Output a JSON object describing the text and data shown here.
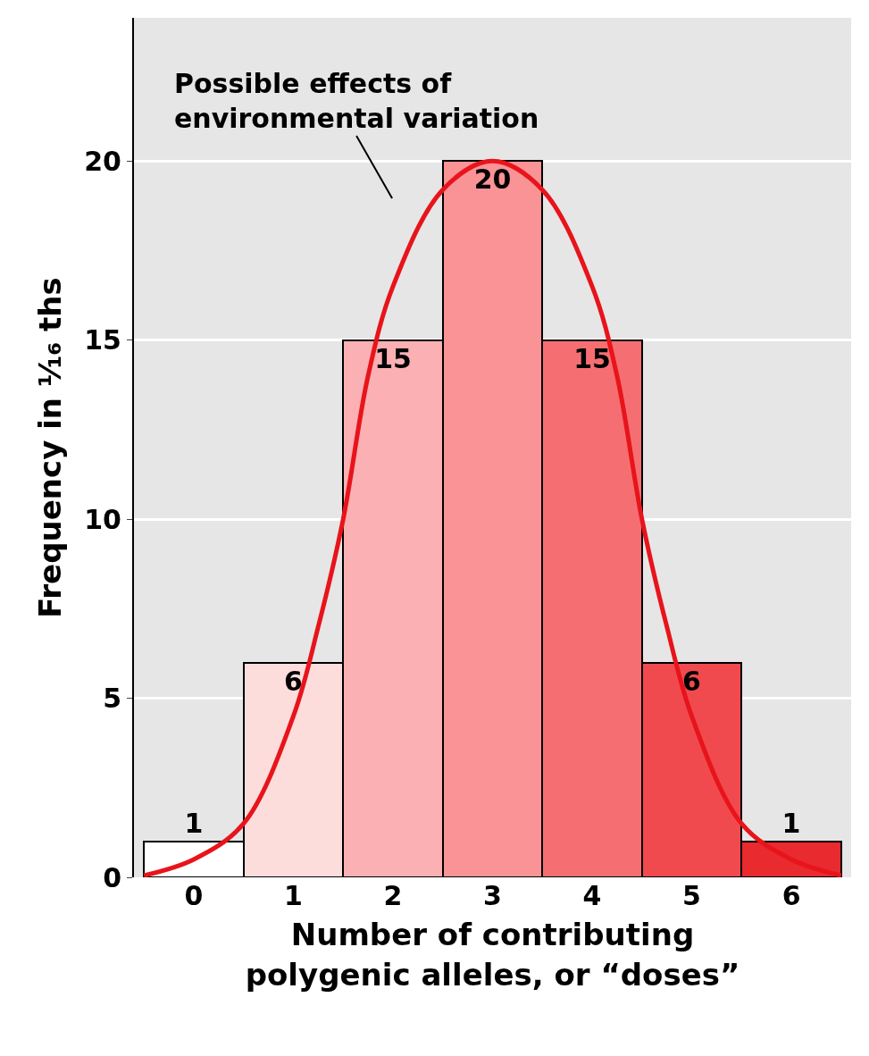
{
  "chart_data": {
    "type": "bar",
    "x": [
      0,
      1,
      2,
      3,
      4,
      5,
      6
    ],
    "xlim": [
      -0.6,
      6.6
    ],
    "xticks": [
      0,
      1,
      2,
      3,
      4,
      5,
      6
    ],
    "ylim": [
      0,
      24
    ],
    "yticks": [
      0,
      5,
      10,
      15,
      20
    ],
    "xlabel": "Number of contributing\npolygenic alleles, or “doses”",
    "ylabel": "Frequency in ¹⁄₁₆ ths",
    "grid": "y",
    "series": [
      {
        "values": [
          1,
          6,
          15,
          20,
          15,
          6,
          1
        ],
        "value_labels": [
          "1",
          "6",
          "15",
          "20",
          "15",
          "6",
          "1"
        ],
        "colors": [
          "#ffffff",
          "#fddcdc",
          "#fbb0b3",
          "#f99396",
          "#f56f72",
          "#f04a4e",
          "#e92a2e"
        ]
      },
      {
        "type": "line",
        "color": "#e8141b",
        "x": [
          -0.5,
          0,
          0.5,
          1,
          1.25,
          1.5,
          1.75,
          2,
          2.5,
          3,
          3.5,
          4,
          4.25,
          4.5,
          4.75,
          5,
          5.5,
          6,
          6.5
        ],
        "values": [
          0.05,
          0.5,
          1.5,
          4.5,
          7,
          10,
          14,
          16.5,
          19.2,
          20,
          19.2,
          16.5,
          14,
          10,
          7,
          4.5,
          1.5,
          0.5,
          0.05
        ]
      }
    ],
    "annotations": [
      "Possible effects of\nenvironmental variation"
    ]
  }
}
